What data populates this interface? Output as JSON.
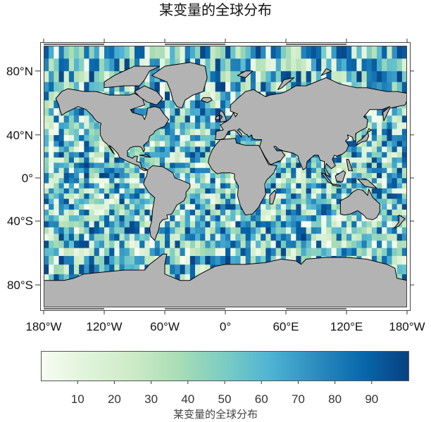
{
  "chart_data": {
    "type": "heatmap",
    "title": "某变量的全球分布",
    "projection": "Miller cylindrical",
    "grid_resolution_deg": 5,
    "value_range": [
      0,
      100
    ],
    "colormap": "GnBu",
    "colormap_stops": [
      "#f7fcf0",
      "#e0f3db",
      "#ccebc5",
      "#a8ddb5",
      "#7bccc4",
      "#4eb3d3",
      "#2b8cbe",
      "#0868ac",
      "#084081"
    ],
    "land_color": "#b3b3b3",
    "coastline_color": "#000000",
    "lon_ticks": [
      {
        "value": -180,
        "label": "180°W"
      },
      {
        "value": -120,
        "label": "120°W"
      },
      {
        "value": -60,
        "label": "60°W"
      },
      {
        "value": 0,
        "label": "0°"
      },
      {
        "value": 60,
        "label": "60°E"
      },
      {
        "value": 120,
        "label": "120°E"
      },
      {
        "value": 180,
        "label": "180°W"
      }
    ],
    "lat_ticks": [
      {
        "value": 80,
        "label": "80°N"
      },
      {
        "value": 40,
        "label": "40°N"
      },
      {
        "value": 0,
        "label": "0°"
      },
      {
        "value": -40,
        "label": "40°S"
      },
      {
        "value": -80,
        "label": "80°S"
      }
    ],
    "colorbar": {
      "label": "某变量的全球分布",
      "range": [
        0,
        100
      ],
      "ticks": [
        {
          "value": 10,
          "label": "10"
        },
        {
          "value": 20,
          "label": "20"
        },
        {
          "value": 30,
          "label": "30"
        },
        {
          "value": 40,
          "label": "40"
        },
        {
          "value": 50,
          "label": "50"
        },
        {
          "value": 60,
          "label": "60"
        },
        {
          "value": 70,
          "label": "70"
        },
        {
          "value": 80,
          "label": "80"
        },
        {
          "value": 90,
          "label": "90"
        }
      ]
    }
  }
}
